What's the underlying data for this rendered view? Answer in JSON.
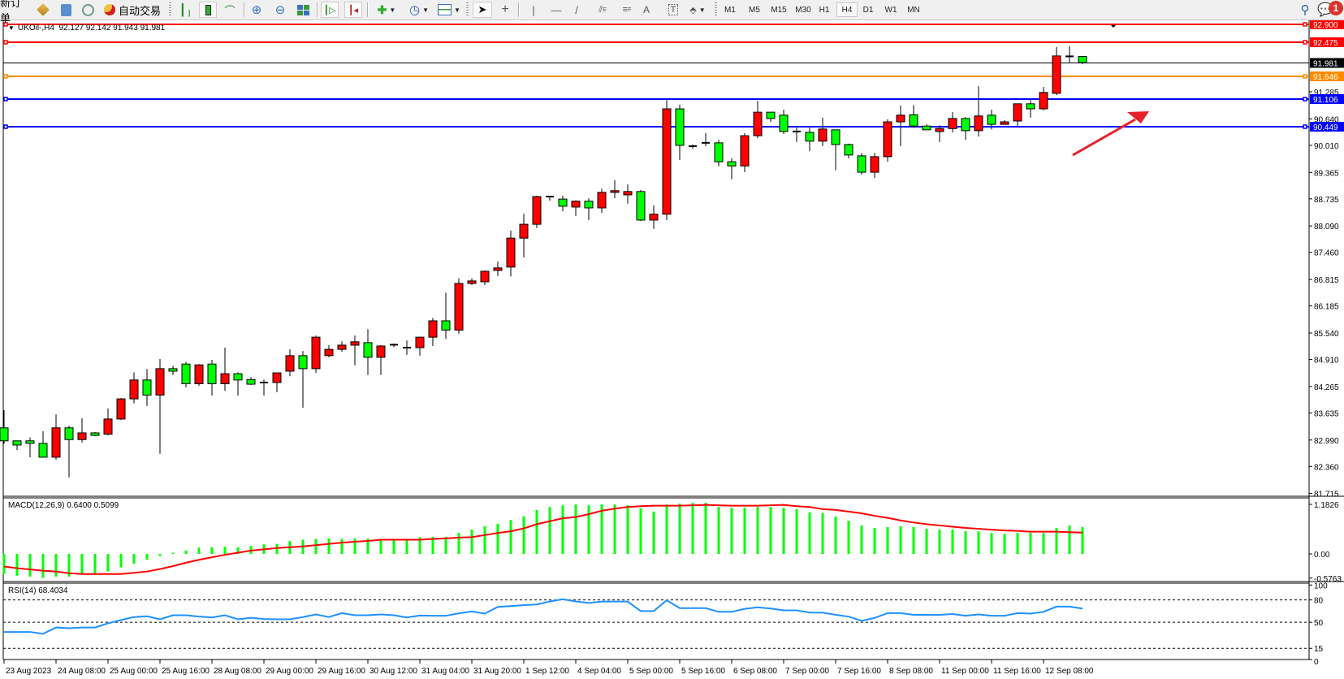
{
  "toolbar": {
    "new_order_label": "新订单",
    "auto_trading_label": "自动交易",
    "timeframes": [
      "M1",
      "M5",
      "M15",
      "M30",
      "H1",
      "H4",
      "D1",
      "W1",
      "MN"
    ],
    "active_timeframe": "H4",
    "notification_count": "1",
    "tools": [
      "new-order",
      "market-watch-icon",
      "navigator-icon",
      "signals-icon",
      "auto-trading-icon",
      "bar-chart-icon",
      "candlestick-icon",
      "line-chart-icon",
      "zoom-in-icon",
      "zoom-out-icon",
      "tile-windows-icon",
      "auto-scroll-icon",
      "chart-shift-icon",
      "new-chart-icon",
      "periods-clock-icon",
      "templates-icon",
      "cursor-icon",
      "crosshair-icon",
      "vertical-line-icon",
      "horizontal-line-icon",
      "trendline-icon",
      "equidistant-channel-icon",
      "fibonacci-icon",
      "text-icon",
      "text-label-icon",
      "arrows-icon",
      "search-icon",
      "chat-bubble-icon"
    ]
  },
  "chart_data": {
    "type": "candlestick",
    "symbol_header": "UKOil-,H4  92.127 92.142 91.943 91.981",
    "colors": {
      "bull": "#ff0000",
      "bear": "#00ff00",
      "background": "#ffffff",
      "annotation_arrow": "#e8202a"
    },
    "ohlc_columns": [
      "open",
      "high",
      "low",
      "close"
    ],
    "ohlc": [
      [
        83.28,
        83.7,
        82.9,
        82.97
      ],
      [
        82.97,
        82.97,
        82.75,
        82.87
      ],
      [
        82.97,
        83.05,
        82.58,
        82.91
      ],
      [
        82.91,
        83.2,
        82.58,
        82.58
      ],
      [
        82.58,
        83.6,
        82.52,
        83.28
      ],
      [
        83.28,
        83.33,
        82.1,
        83.0
      ],
      [
        83.0,
        83.51,
        82.93,
        83.16
      ],
      [
        83.16,
        83.18,
        83.08,
        83.1
      ],
      [
        83.13,
        83.74,
        83.1,
        83.49
      ],
      [
        83.49,
        83.99,
        83.47,
        83.97
      ],
      [
        83.97,
        84.6,
        83.86,
        84.42
      ],
      [
        84.42,
        84.68,
        83.8,
        84.06
      ],
      [
        84.06,
        84.92,
        82.66,
        84.69
      ],
      [
        84.69,
        84.76,
        84.54,
        84.63
      ],
      [
        84.8,
        84.85,
        84.24,
        84.33
      ],
      [
        84.33,
        84.8,
        84.28,
        84.78
      ],
      [
        84.8,
        84.9,
        84.05,
        84.33
      ],
      [
        84.33,
        85.19,
        84.16,
        84.57
      ],
      [
        84.57,
        84.6,
        84.05,
        84.42
      ],
      [
        84.43,
        84.49,
        84.3,
        84.32
      ],
      [
        84.36,
        84.43,
        84.05,
        84.36
      ],
      [
        84.36,
        84.6,
        84.13,
        84.59
      ],
      [
        84.63,
        85.15,
        84.51,
        85.0
      ],
      [
        85.0,
        85.11,
        83.76,
        84.69
      ],
      [
        84.69,
        85.48,
        84.59,
        85.44
      ],
      [
        85.0,
        85.25,
        84.96,
        85.15
      ],
      [
        85.15,
        85.34,
        85.09,
        85.25
      ],
      [
        85.25,
        85.48,
        84.77,
        85.33
      ],
      [
        85.31,
        85.63,
        84.54,
        84.96
      ],
      [
        84.96,
        85.25,
        84.54,
        85.23
      ],
      [
        85.24,
        85.29,
        85.2,
        85.26
      ],
      [
        85.19,
        85.36,
        85.02,
        85.19
      ],
      [
        85.19,
        85.45,
        85.0,
        85.44
      ],
      [
        85.44,
        85.9,
        85.23,
        85.83
      ],
      [
        85.83,
        86.5,
        85.4,
        85.61
      ],
      [
        85.61,
        86.84,
        85.52,
        86.72
      ],
      [
        86.72,
        86.84,
        86.68,
        86.78
      ],
      [
        86.76,
        87.03,
        86.68,
        87.01
      ],
      [
        87.03,
        87.24,
        86.9,
        87.09
      ],
      [
        87.11,
        87.98,
        86.89,
        87.8
      ],
      [
        87.8,
        88.38,
        87.34,
        88.13
      ],
      [
        88.13,
        88.81,
        88.04,
        88.79
      ],
      [
        88.79,
        88.79,
        88.69,
        88.79
      ],
      [
        88.73,
        88.81,
        88.44,
        88.56
      ],
      [
        88.54,
        88.7,
        88.33,
        88.68
      ],
      [
        88.68,
        88.75,
        88.23,
        88.52
      ],
      [
        88.52,
        88.98,
        88.4,
        88.89
      ],
      [
        88.89,
        89.18,
        88.75,
        88.93
      ],
      [
        88.83,
        89.08,
        88.62,
        88.91
      ],
      [
        88.91,
        88.95,
        88.21,
        88.23
      ],
      [
        88.23,
        88.58,
        88.02,
        88.37
      ],
      [
        88.37,
        91.09,
        88.23,
        90.88
      ],
      [
        90.88,
        90.98,
        89.66,
        90.01
      ],
      [
        89.99,
        90.03,
        89.93,
        89.99
      ],
      [
        90.06,
        90.3,
        89.99,
        90.07
      ],
      [
        90.07,
        90.14,
        89.51,
        89.62
      ],
      [
        89.62,
        89.7,
        89.2,
        89.52
      ],
      [
        89.52,
        90.3,
        89.37,
        90.24
      ],
      [
        90.24,
        91.07,
        90.18,
        90.8
      ],
      [
        90.8,
        90.8,
        90.57,
        90.65
      ],
      [
        90.73,
        90.86,
        90.28,
        90.34
      ],
      [
        90.34,
        90.43,
        90.09,
        90.34
      ],
      [
        90.32,
        90.43,
        89.87,
        90.11
      ],
      [
        90.11,
        90.67,
        89.99,
        90.4
      ],
      [
        90.38,
        90.38,
        89.42,
        90.03
      ],
      [
        90.03,
        90.05,
        89.7,
        89.78
      ],
      [
        89.76,
        89.83,
        89.31,
        89.37
      ],
      [
        89.37,
        89.83,
        89.23,
        89.74
      ],
      [
        89.74,
        90.63,
        89.62,
        90.57
      ],
      [
        90.57,
        90.96,
        89.99,
        90.73
      ],
      [
        90.74,
        90.97,
        90.43,
        90.47
      ],
      [
        90.47,
        90.51,
        90.38,
        90.38
      ],
      [
        90.34,
        90.49,
        90.09,
        90.41
      ],
      [
        90.41,
        90.8,
        90.32,
        90.65
      ],
      [
        90.65,
        90.69,
        90.14,
        90.36
      ],
      [
        90.36,
        91.42,
        90.22,
        90.71
      ],
      [
        90.73,
        90.86,
        90.39,
        90.51
      ],
      [
        90.51,
        90.61,
        90.51,
        90.57
      ],
      [
        90.59,
        91.0,
        90.47,
        91.0
      ],
      [
        91.0,
        91.09,
        90.67,
        90.88
      ],
      [
        90.88,
        91.4,
        90.84,
        91.27
      ],
      [
        91.25,
        92.35,
        91.21,
        92.14
      ],
      [
        92.13,
        92.37,
        91.98,
        92.12
      ],
      [
        92.127,
        92.142,
        91.943,
        91.981
      ]
    ],
    "x_labels": [
      "23 Aug 2023",
      "24 Aug 08:00",
      "25 Aug 00:00",
      "25 Aug 16:00",
      "28 Aug 08:00",
      "29 Aug 00:00",
      "29 Aug 16:00",
      "30 Aug 12:00",
      "31 Aug 04:00",
      "31 Aug 20:00",
      "1 Sep 12:00",
      "4 Sep 04:00",
      "5 Sep 00:00",
      "5 Sep 16:00",
      "6 Sep 08:00",
      "7 Sep 00:00",
      "7 Sep 16:00",
      "8 Sep 08:00",
      "11 Sep 00:00",
      "11 Sep 16:00",
      "12 Sep 08:00"
    ],
    "x_label_every_bars": 4,
    "ylim": [
      81.65,
      92.97
    ],
    "y_ticks": [
      "91.285",
      "90.640",
      "90.010",
      "89.365",
      "88.735",
      "88.090",
      "87.460",
      "86.815",
      "86.185",
      "85.540",
      "84.910",
      "84.265",
      "83.635",
      "82.990",
      "82.360",
      "81.715"
    ],
    "hlines": [
      {
        "price": 92.9,
        "label": "92.900",
        "color": "#ff0000"
      },
      {
        "price": 92.475,
        "label": "92.475",
        "color": "#ff0000"
      },
      {
        "price": 91.646,
        "label": "91.646",
        "color": "#ff8c00"
      },
      {
        "price": 91.106,
        "label": "91.106",
        "color": "#0000ff"
      },
      {
        "price": 90.449,
        "label": "90.449",
        "color": "#0000ff"
      }
    ],
    "bid_line": {
      "price": 91.981,
      "label": "91.981",
      "color": "#000000"
    },
    "annotation": {
      "type": "arrow",
      "direction": "up-right",
      "color": "#e8202a"
    },
    "macd": {
      "title": "MACD(12,26,9) 0.6400 0.5099",
      "histogram_color": "#00ff00",
      "signal_color": "#ff0000",
      "ylim": [
        -0.5763,
        1.1826
      ],
      "y_ticks": [
        "1.1826",
        "0.00",
        "-0.5763"
      ],
      "histogram": [
        -0.48,
        -0.52,
        -0.54,
        -0.57,
        -0.54,
        -0.54,
        -0.47,
        -0.47,
        -0.42,
        -0.32,
        -0.23,
        -0.14,
        -0.05,
        0.03,
        0.08,
        0.15,
        0.16,
        0.17,
        0.16,
        0.19,
        0.23,
        0.24,
        0.31,
        0.34,
        0.36,
        0.37,
        0.36,
        0.37,
        0.37,
        0.32,
        0.32,
        0.32,
        0.4,
        0.41,
        0.41,
        0.5,
        0.58,
        0.66,
        0.72,
        0.81,
        0.9,
        1.05,
        1.12,
        1.16,
        1.18,
        1.16,
        1.18,
        1.18,
        1.16,
        1.09,
        1.01,
        1.18,
        1.2,
        1.22,
        1.22,
        1.12,
        1.1,
        1.1,
        1.12,
        1.12,
        1.1,
        1.07,
        0.99,
        0.97,
        0.89,
        0.79,
        0.68,
        0.62,
        0.64,
        0.66,
        0.64,
        0.6,
        0.58,
        0.58,
        0.54,
        0.54,
        0.5,
        0.48,
        0.5,
        0.5,
        0.5,
        0.62,
        0.68,
        0.64
      ],
      "signal": [
        -0.3,
        -0.34,
        -0.37,
        -0.4,
        -0.42,
        -0.46,
        -0.48,
        -0.48,
        -0.48,
        -0.48,
        -0.45,
        -0.42,
        -0.36,
        -0.29,
        -0.21,
        -0.14,
        -0.08,
        -0.02,
        0.03,
        0.08,
        0.11,
        0.14,
        0.16,
        0.18,
        0.21,
        0.24,
        0.27,
        0.29,
        0.31,
        0.34,
        0.34,
        0.34,
        0.34,
        0.36,
        0.37,
        0.39,
        0.4,
        0.45,
        0.5,
        0.54,
        0.61,
        0.71,
        0.78,
        0.85,
        0.88,
        0.95,
        1.03,
        1.08,
        1.12,
        1.14,
        1.15,
        1.15,
        1.15,
        1.16,
        1.17,
        1.16,
        1.15,
        1.15,
        1.15,
        1.16,
        1.17,
        1.14,
        1.12,
        1.07,
        1.05,
        1.01,
        0.97,
        0.91,
        0.86,
        0.8,
        0.75,
        0.71,
        0.68,
        0.65,
        0.62,
        0.6,
        0.58,
        0.56,
        0.55,
        0.53,
        0.53,
        0.53,
        0.52,
        0.51
      ]
    },
    "rsi": {
      "title": "RSI(14) 68.4034",
      "color": "#1e90ff",
      "ylim": [
        0,
        100
      ],
      "levels": [
        80,
        50,
        15
      ],
      "y_ticks": [
        "100",
        "80",
        "50",
        "15",
        "0"
      ],
      "values": [
        37,
        37,
        37,
        34.5,
        43,
        42,
        43,
        43,
        48.6,
        53,
        57,
        58,
        54,
        59.4,
        59.4,
        57.6,
        56.5,
        59.4,
        54,
        56,
        54.4,
        54,
        54,
        57,
        60.5,
        57,
        62.3,
        59.4,
        59.4,
        60.5,
        59.4,
        56.5,
        59,
        58.7,
        58.7,
        62,
        64.5,
        61.6,
        70.6,
        71.7,
        73,
        73.9,
        78,
        81,
        78,
        76,
        77.8,
        77.8,
        77.8,
        65,
        65,
        79.6,
        69,
        69,
        69,
        64,
        64,
        68,
        70,
        68.4,
        66,
        66,
        63,
        63,
        60,
        57.6,
        52,
        55.8,
        62.3,
        62.3,
        60,
        60,
        60,
        61,
        58.7,
        60.5,
        58.7,
        58.7,
        62.3,
        61.6,
        64,
        71,
        71,
        68.4034
      ]
    }
  }
}
